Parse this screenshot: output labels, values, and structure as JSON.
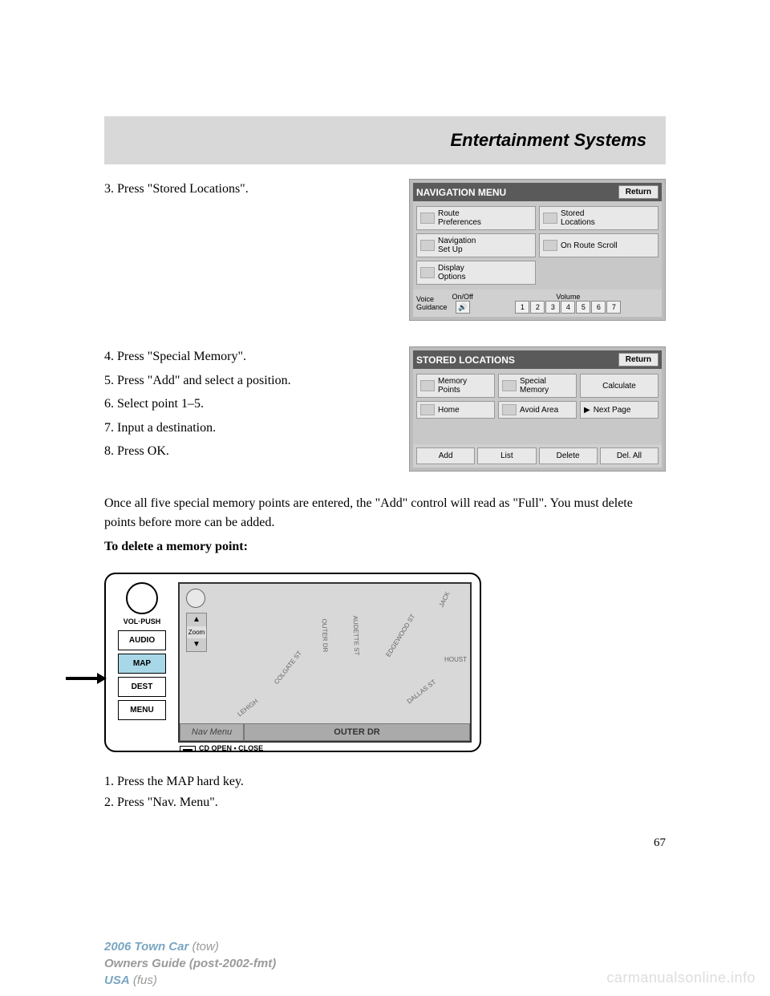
{
  "header": {
    "title": "Entertainment Systems"
  },
  "step3": {
    "text": "3. Press \"Stored Locations\".",
    "screenshot": {
      "title": "NAVIGATION MENU",
      "return": "Return",
      "buttons": [
        "Route\nPreferences",
        "Stored\nLocations",
        "Navigation\nSet Up",
        "On Route Scroll",
        "Display\nOptions"
      ],
      "voice_label": "Voice\nGuidance",
      "onoff": "On/Off",
      "volume": "Volume",
      "vol_nums": [
        "1",
        "2",
        "3",
        "4",
        "5",
        "6",
        "7"
      ]
    }
  },
  "steps45678": {
    "lines": [
      "4. Press \"Special Memory\".",
      "5. Press \"Add\" and select a position.",
      "6. Select point 1–5.",
      "7. Input a destination.",
      "8. Press OK."
    ],
    "screenshot": {
      "title": "STORED LOCATIONS",
      "return": "Return",
      "buttons": [
        "Memory\nPoints",
        "Special\nMemory",
        "Calculate",
        "Home",
        "Avoid Area",
        "Next Page"
      ],
      "bottom": [
        "Add",
        "List",
        "Delete",
        "Del. All"
      ]
    }
  },
  "full_para": "Once all five special memory points are entered, the \"Add\" control will read as \"Full\". You must delete points before more can be added.",
  "delete_heading": "To delete a memory point:",
  "nav_device": {
    "vol": "VOL·PUSH",
    "keys": [
      "AUDIO",
      "MAP",
      "DEST",
      "MENU"
    ],
    "cd": "CD OPEN • CLOSE",
    "zoom": "Zoom",
    "navmenu": "Nav Menu",
    "street": "OUTER DR",
    "streets": [
      {
        "t": "LEHIGH",
        "l": 70,
        "tp": 150,
        "r": -38
      },
      {
        "t": "COLGATE ST",
        "l": 110,
        "tp": 100,
        "r": -52
      },
      {
        "t": "OUTER DR",
        "l": 160,
        "tp": 60,
        "r": 88
      },
      {
        "t": "AUDETTE ST",
        "l": 195,
        "tp": 60,
        "r": 88
      },
      {
        "t": "EDGEWOOD ST",
        "l": 245,
        "tp": 60,
        "r": -58
      },
      {
        "t": "DALLAS ST",
        "l": 280,
        "tp": 130,
        "r": -38
      },
      {
        "t": "HOUST",
        "l": 330,
        "tp": 90,
        "r": 0
      },
      {
        "t": "JACK",
        "l": 320,
        "tp": 15,
        "r": -65
      }
    ]
  },
  "after": {
    "lines": [
      "1. Press the MAP hard key.",
      "2. Press \"Nav. Menu\"."
    ]
  },
  "page_num": "67",
  "footer": {
    "model": "2006 Town Car",
    "model_code": "(tow)",
    "guide": "Owners Guide (post-2002-fmt)",
    "usa": "USA",
    "usa_code": "(fus)"
  },
  "watermark": "carmanualsonline.info"
}
